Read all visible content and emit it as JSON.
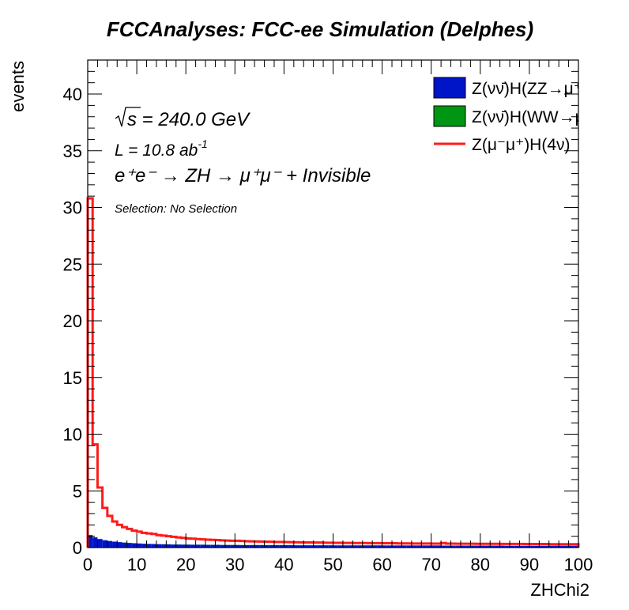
{
  "chart_data": {
    "type": "histogram",
    "title": "FCCAnalyses: FCC-ee Simulation (Delphes)",
    "xlabel": "ZHChi2",
    "ylabel": "events",
    "xlim": [
      0,
      100
    ],
    "ylim": [
      0,
      43
    ],
    "x_ticks": [
      "0",
      "10",
      "20",
      "30",
      "40",
      "50",
      "60",
      "70",
      "80",
      "90",
      "100"
    ],
    "y_ticks": [
      "0",
      "5",
      "10",
      "15",
      "20",
      "25",
      "30",
      "35",
      "40"
    ],
    "bin_width": 1,
    "annotations": {
      "sqrt_s": "s = 240.0 GeV",
      "lumi": "L = 10.8 ab",
      "lumi_exp": "-1",
      "process": "e⁺e⁻ → ZH → μ⁺μ⁻ + Invisible",
      "selection": "Selection: No Selection"
    },
    "legend": [
      {
        "label": "Z(νν̄)H(ZZ→μ⁺μ⁻ν⁺",
        "color": "#0014c8",
        "style": "fill"
      },
      {
        "label": "Z(νν̄)H(WW→μ⁺νμ",
        "color": "#009614",
        "style": "fill"
      },
      {
        "label": "Z(μ⁻μ⁺)H(4ν)",
        "color": "#ff1a1a",
        "style": "line"
      }
    ],
    "series": [
      {
        "name": "Z(νν̄)H(ZZ→μ⁺μ⁻ν⁺",
        "color": "#0014c8",
        "values": [
          1.1,
          0.9,
          0.75,
          0.65,
          0.58,
          0.52,
          0.48,
          0.44,
          0.41,
          0.38,
          0.36,
          0.34,
          0.32,
          0.31,
          0.3,
          0.29,
          0.28,
          0.27,
          0.27,
          0.26,
          0.26,
          0.25,
          0.25,
          0.25,
          0.24,
          0.24,
          0.24,
          0.23,
          0.23,
          0.23,
          0.23,
          0.22,
          0.22,
          0.22,
          0.22,
          0.22,
          0.21,
          0.21,
          0.21,
          0.21,
          0.21,
          0.21,
          0.2,
          0.2,
          0.2,
          0.2,
          0.2,
          0.2,
          0.2,
          0.2,
          0.19,
          0.19,
          0.19,
          0.19,
          0.19,
          0.19,
          0.19,
          0.19,
          0.19,
          0.19,
          0.18,
          0.18,
          0.18,
          0.18,
          0.18,
          0.18,
          0.18,
          0.18,
          0.18,
          0.18,
          0.18,
          0.18,
          0.17,
          0.17,
          0.17,
          0.17,
          0.17,
          0.17,
          0.17,
          0.17,
          0.17,
          0.17,
          0.17,
          0.17,
          0.17,
          0.16,
          0.16,
          0.16,
          0.16,
          0.16,
          0.16,
          0.16,
          0.16,
          0.16,
          0.16,
          0.16,
          0.16,
          0.16,
          0.16,
          0.16
        ]
      },
      {
        "name": "Z(νν̄)H(WW→μ⁺νμ",
        "color": "#009614",
        "values": [
          0.02,
          0.02,
          0.02,
          0.01,
          0.01,
          0.01,
          0.01,
          0.01,
          0.01,
          0.01,
          0.01,
          0.01,
          0.01,
          0.01,
          0.01,
          0.01,
          0.01,
          0.01,
          0.01,
          0.01,
          0.01,
          0.01,
          0.01,
          0.01,
          0.01,
          0.01,
          0.01,
          0.01,
          0.01,
          0.01,
          0.01,
          0.01,
          0.01,
          0.01,
          0.01,
          0.01,
          0.01,
          0.01,
          0.01,
          0.01,
          0.01,
          0.01,
          0.01,
          0.01,
          0.01,
          0.01,
          0.01,
          0.01,
          0.01,
          0.01,
          0.01,
          0.01,
          0.01,
          0.01,
          0.01,
          0.01,
          0.01,
          0.01,
          0.01,
          0.01,
          0.01,
          0.01,
          0.01,
          0.01,
          0.01,
          0.01,
          0.01,
          0.01,
          0.01,
          0.01,
          0.01,
          0.01,
          0.01,
          0.01,
          0.01,
          0.01,
          0.01,
          0.01,
          0.01,
          0.01,
          0.01,
          0.01,
          0.01,
          0.01,
          0.01,
          0.01,
          0.01,
          0.01,
          0.01,
          0.01,
          0.01,
          0.01,
          0.01,
          0.01,
          0.01,
          0.01,
          0.01,
          0.01,
          0.01,
          0.01
        ]
      },
      {
        "name": "Z(μ⁻μ⁺)H(4ν)",
        "color": "#ff1a1a",
        "values": [
          30.8,
          9.1,
          5.3,
          3.5,
          2.8,
          2.3,
          2.0,
          1.8,
          1.65,
          1.5,
          1.4,
          1.3,
          1.25,
          1.2,
          1.1,
          1.05,
          1.0,
          0.95,
          0.9,
          0.85,
          0.8,
          0.78,
          0.75,
          0.72,
          0.7,
          0.68,
          0.66,
          0.64,
          0.62,
          0.6,
          0.6,
          0.58,
          0.56,
          0.55,
          0.54,
          0.53,
          0.52,
          0.51,
          0.5,
          0.5,
          0.49,
          0.48,
          0.47,
          0.46,
          0.45,
          0.45,
          0.44,
          0.44,
          0.43,
          0.43,
          0.42,
          0.42,
          0.41,
          0.41,
          0.4,
          0.4,
          0.4,
          0.39,
          0.39,
          0.39,
          0.38,
          0.38,
          0.38,
          0.37,
          0.37,
          0.37,
          0.36,
          0.36,
          0.36,
          0.36,
          0.35,
          0.35,
          0.4,
          0.35,
          0.35,
          0.34,
          0.34,
          0.34,
          0.34,
          0.33,
          0.33,
          0.33,
          0.33,
          0.33,
          0.32,
          0.32,
          0.32,
          0.32,
          0.32,
          0.31,
          0.31,
          0.31,
          0.31,
          0.31,
          0.3,
          0.3,
          0.3,
          0.3,
          0.3,
          0.3
        ]
      }
    ]
  }
}
